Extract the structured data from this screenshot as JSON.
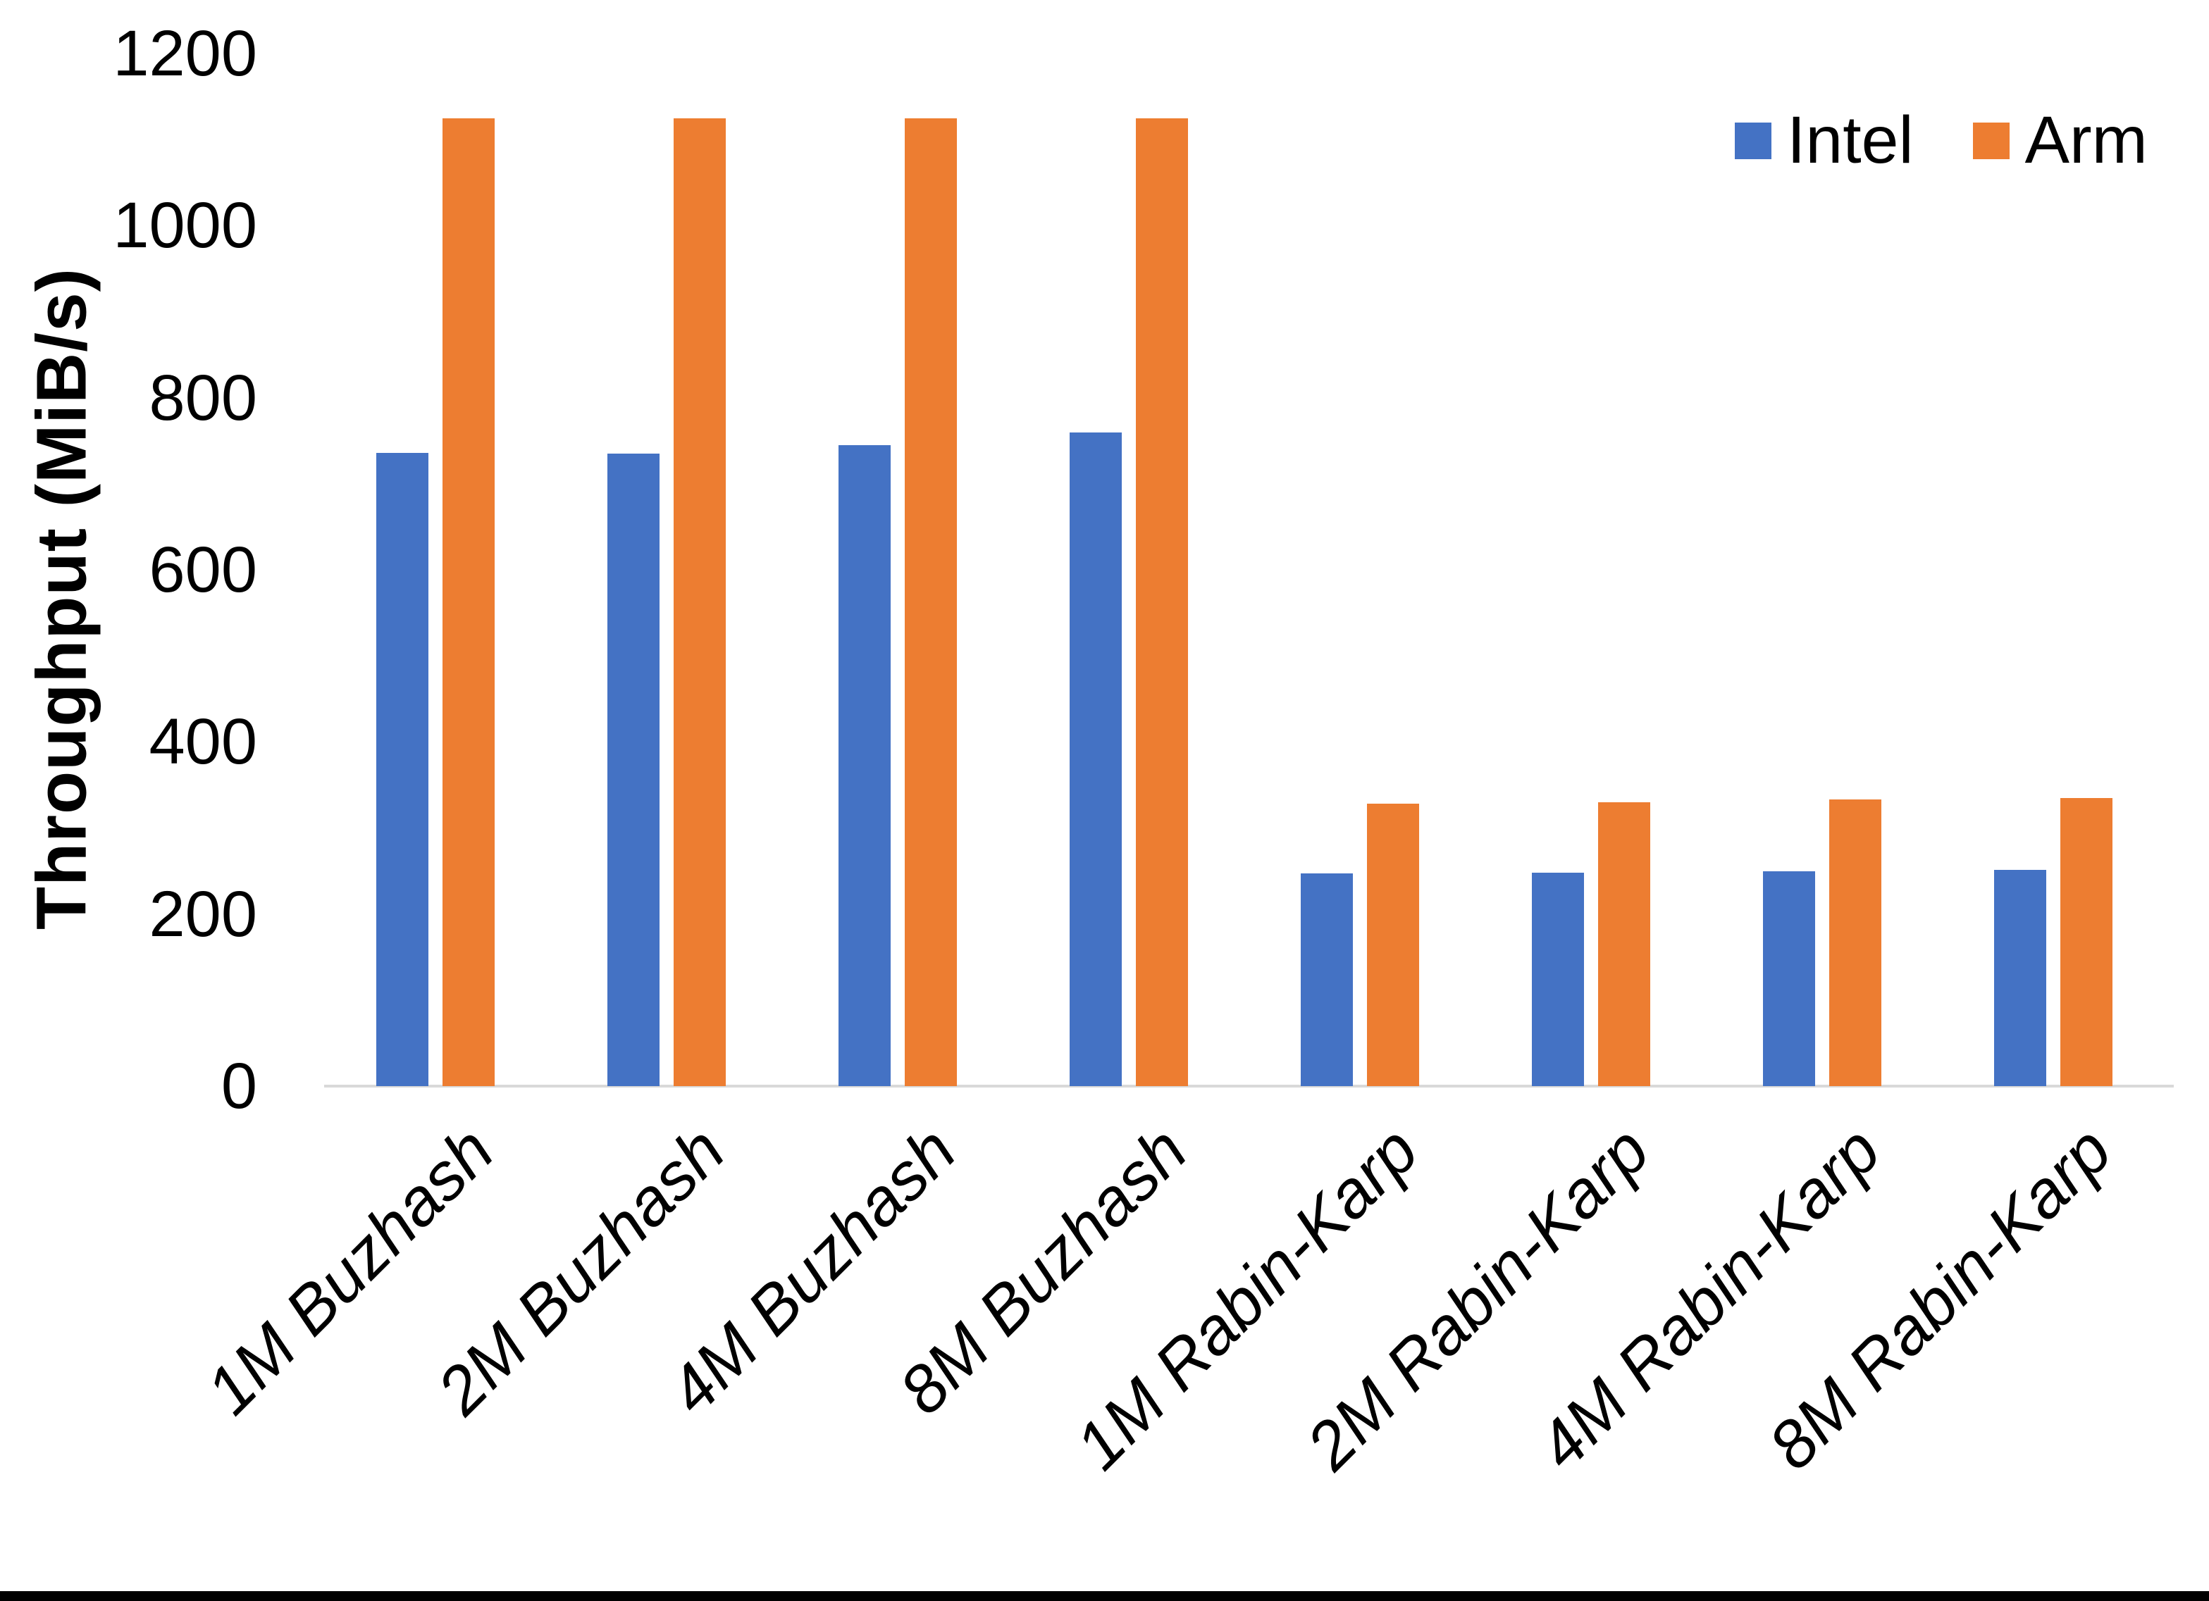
{
  "chart_data": {
    "type": "bar",
    "title": "",
    "xlabel": "",
    "ylabel": "Throughput (MiB/s)",
    "categories": [
      "1M Buzhash",
      "2M Buzhash",
      "4M Buzhash",
      "8M Buzhash",
      "1M Rabin-Karp",
      "2M Rabin-Karp",
      "4M Rabin-Karp",
      "8M Rabin-Karp"
    ],
    "series": [
      {
        "name": "Intel",
        "color": "#4472C4",
        "values": [
          736,
          735,
          745,
          760,
          247,
          248,
          250,
          251
        ]
      },
      {
        "name": "Arm",
        "color": "#ED7D31",
        "values": [
          1125,
          1125,
          1125,
          1125,
          328,
          330,
          333,
          335
        ]
      }
    ],
    "ylim": [
      0,
      1200
    ],
    "yticks": [
      0,
      200,
      400,
      600,
      800,
      1000,
      1200
    ],
    "grid": false,
    "legend_position": "top-right"
  },
  "colors": {
    "axis_line": "#D9D9D9",
    "text": "#000000",
    "background": "#FFFFFF",
    "bottom_border": "#000000"
  }
}
